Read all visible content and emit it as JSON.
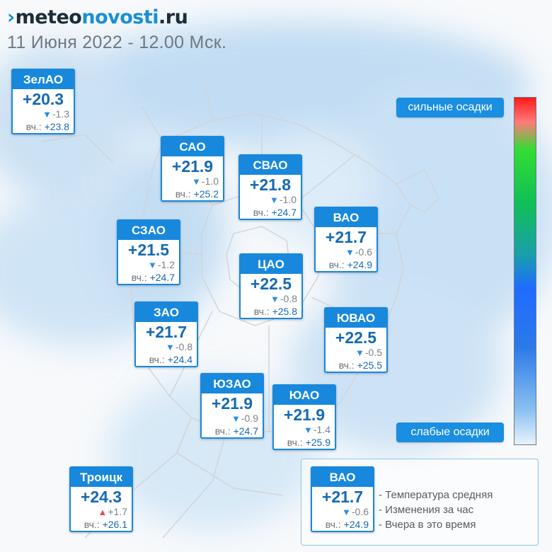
{
  "header": {
    "logo_mark": "›",
    "logo_part1": "meteo",
    "logo_part2": "novosti",
    "logo_part3": ".ru",
    "date_line": "11 Июня 2022 - 12.00 Мск."
  },
  "colors": {
    "brand_blue": "#1888dc",
    "temp_text": "#1669b4",
    "down_arrow": "#2d8ce2",
    "up_arrow": "#e84c4c"
  },
  "districts": [
    {
      "name": "ЗелАО",
      "temp": "+20.3",
      "dir": "down",
      "change": "-1.3",
      "yesterday_label": "вч.:",
      "yesterday": "+23.8"
    },
    {
      "name": "САО",
      "temp": "+21.9",
      "dir": "down",
      "change": "-1.0",
      "yesterday_label": "вч.:",
      "yesterday": "+25.2"
    },
    {
      "name": "СВАО",
      "temp": "+21.8",
      "dir": "down",
      "change": "-1.0",
      "yesterday_label": "вч.:",
      "yesterday": "+24.7"
    },
    {
      "name": "ВАО",
      "temp": "+21.7",
      "dir": "down",
      "change": "-0.6",
      "yesterday_label": "вч.:",
      "yesterday": "+24.9"
    },
    {
      "name": "СЗАО",
      "temp": "+21.5",
      "dir": "down",
      "change": "-1.2",
      "yesterday_label": "вч.:",
      "yesterday": "+24.7"
    },
    {
      "name": "ЦАО",
      "temp": "+22.5",
      "dir": "down",
      "change": "-0.8",
      "yesterday_label": "вч.:",
      "yesterday": "+25.8"
    },
    {
      "name": "ЗАО",
      "temp": "+21.7",
      "dir": "down",
      "change": "-0.8",
      "yesterday_label": "вч.:",
      "yesterday": "+24.4"
    },
    {
      "name": "ЮВАО",
      "temp": "+22.5",
      "dir": "down",
      "change": "-0.5",
      "yesterday_label": "вч.:",
      "yesterday": "+25.5"
    },
    {
      "name": "ЮЗАО",
      "temp": "+21.9",
      "dir": "down",
      "change": "-0.9",
      "yesterday_label": "вч.:",
      "yesterday": "+24.7"
    },
    {
      "name": "ЮАО",
      "temp": "+21.9",
      "dir": "down",
      "change": "-1.4",
      "yesterday_label": "вч.:",
      "yesterday": "+25.9"
    },
    {
      "name": "Троицк",
      "temp": "+24.3",
      "dir": "up",
      "change": "+1.7",
      "yesterday_label": "вч.:",
      "yesterday": "+26.1"
    }
  ],
  "precip_scale": {
    "top_label": "сильные осадки",
    "bottom_label": "слабые осадки"
  },
  "legend": {
    "sample": {
      "name": "ВАО",
      "temp": "+21.7",
      "dir": "down",
      "change": "-0.6",
      "yesterday_label": "вч.:",
      "yesterday": "+24.9"
    },
    "lines": [
      "- Температура средняя",
      "- Изменения за час",
      "- Вчера в это время"
    ]
  }
}
